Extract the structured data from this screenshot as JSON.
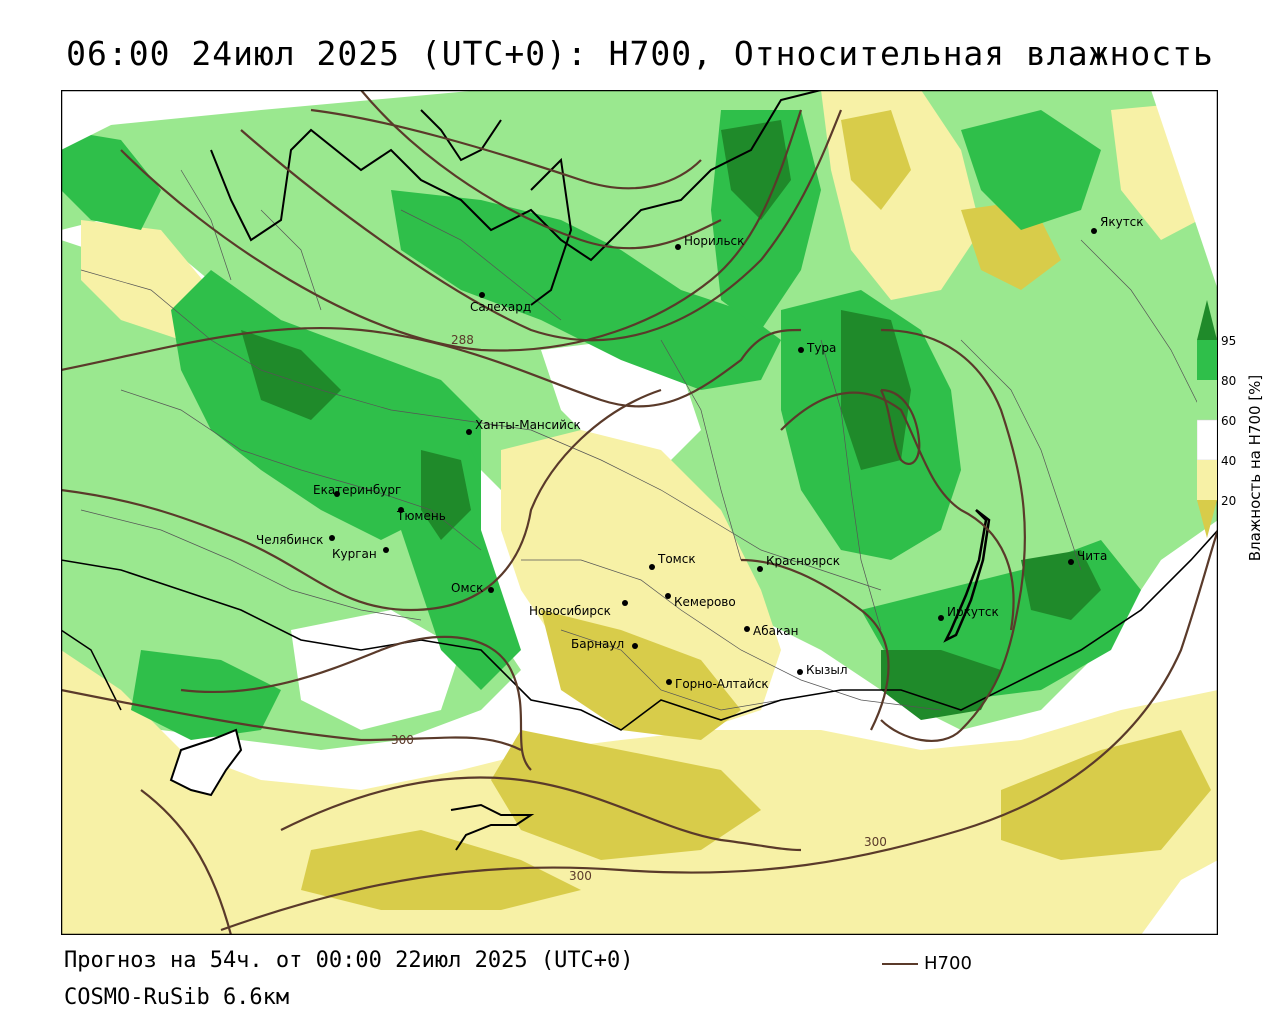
{
  "title": "06:00 24июл 2025 (UTC+0): H700, Относительная влажность",
  "forecast": "Прогноз на 54ч. от 00:00 22июл 2025 (UTC+0)",
  "model": "COSMO-RuSib 6.6км",
  "legend": {
    "key_label": "H700",
    "axis_label": "Влажность на H700 [%]",
    "ticks": [
      "95",
      "80",
      "60",
      "40",
      "20"
    ],
    "colors": [
      "#1f8a2a",
      "#2fbf4a",
      "#9ae88f",
      "#ffffff",
      "#f7f1a6",
      "#d8cc4a"
    ]
  },
  "cities": [
    {
      "name": "Якутск"
    },
    {
      "name": "Норильск"
    },
    {
      "name": "Салехард"
    },
    {
      "name": "Тура"
    },
    {
      "name": "Ханты-Мансийск"
    },
    {
      "name": "Екатеринбург"
    },
    {
      "name": "Тюмень"
    },
    {
      "name": "Челябинск"
    },
    {
      "name": "Курган"
    },
    {
      "name": "Омск"
    },
    {
      "name": "Новосибирск"
    },
    {
      "name": "Томск"
    },
    {
      "name": "Кемерово"
    },
    {
      "name": "Красноярск"
    },
    {
      "name": "Абакан"
    },
    {
      "name": "Барнаул"
    },
    {
      "name": "Горно-Алтайск"
    },
    {
      "name": "Кызыл"
    },
    {
      "name": "Иркутск"
    },
    {
      "name": "Чита"
    }
  ],
  "isolines": [
    "288",
    "300",
    "300",
    "300"
  ]
}
